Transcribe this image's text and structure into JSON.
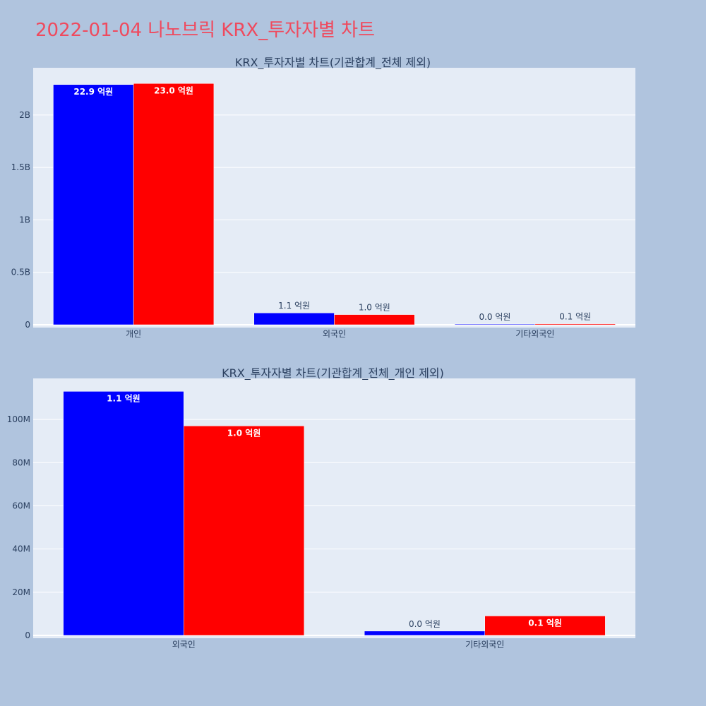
{
  "page": {
    "title": "2022-01-04 나노브릭 KRX_투자자별 차트"
  },
  "colors": {
    "background": "#b0c4de",
    "plot_bg": "#e5ecf6",
    "buy": "#0000ff",
    "sell": "#ff0000",
    "title": "#ef4a5e",
    "text": "#2a3f5f"
  },
  "chart_data": [
    {
      "type": "bar",
      "title": "KRX_투자자별 차트(기관합계_전체 제외)",
      "categories": [
        "개인",
        "외국인",
        "기타외국인"
      ],
      "series": [
        {
          "color": "#0000ff",
          "values": [
            2290000000,
            113000000,
            2000000
          ],
          "labels": [
            "22.9 억원",
            "1.1 억원",
            "0.0 억원"
          ]
        },
        {
          "color": "#ff0000",
          "values": [
            2300000000,
            97000000,
            9000000
          ],
          "labels": [
            "23.0 억원",
            "1.0 억원",
            "0.1 억원"
          ]
        }
      ],
      "ylim": [
        0,
        2450000000
      ],
      "yticks": [
        0,
        500000000,
        1000000000,
        1500000000,
        2000000000
      ],
      "ytick_labels": [
        "0",
        "0.5B",
        "1B",
        "1.5B",
        "2B"
      ],
      "grid": true
    },
    {
      "type": "bar",
      "title": "KRX_투자자별 차트(기관합계_전체_개인 제외)",
      "categories": [
        "외국인",
        "기타외국인"
      ],
      "series": [
        {
          "color": "#0000ff",
          "values": [
            113000000,
            2000000
          ],
          "labels": [
            "1.1 억원",
            "0.0 억원"
          ]
        },
        {
          "color": "#ff0000",
          "values": [
            97000000,
            9000000
          ],
          "labels": [
            "1.0 억원",
            "0.1 억원"
          ]
        }
      ],
      "ylim": [
        0,
        119000000
      ],
      "yticks": [
        0,
        20000000,
        40000000,
        60000000,
        80000000,
        100000000
      ],
      "ytick_labels": [
        "0",
        "20M",
        "40M",
        "60M",
        "80M",
        "100M"
      ],
      "grid": true
    }
  ]
}
